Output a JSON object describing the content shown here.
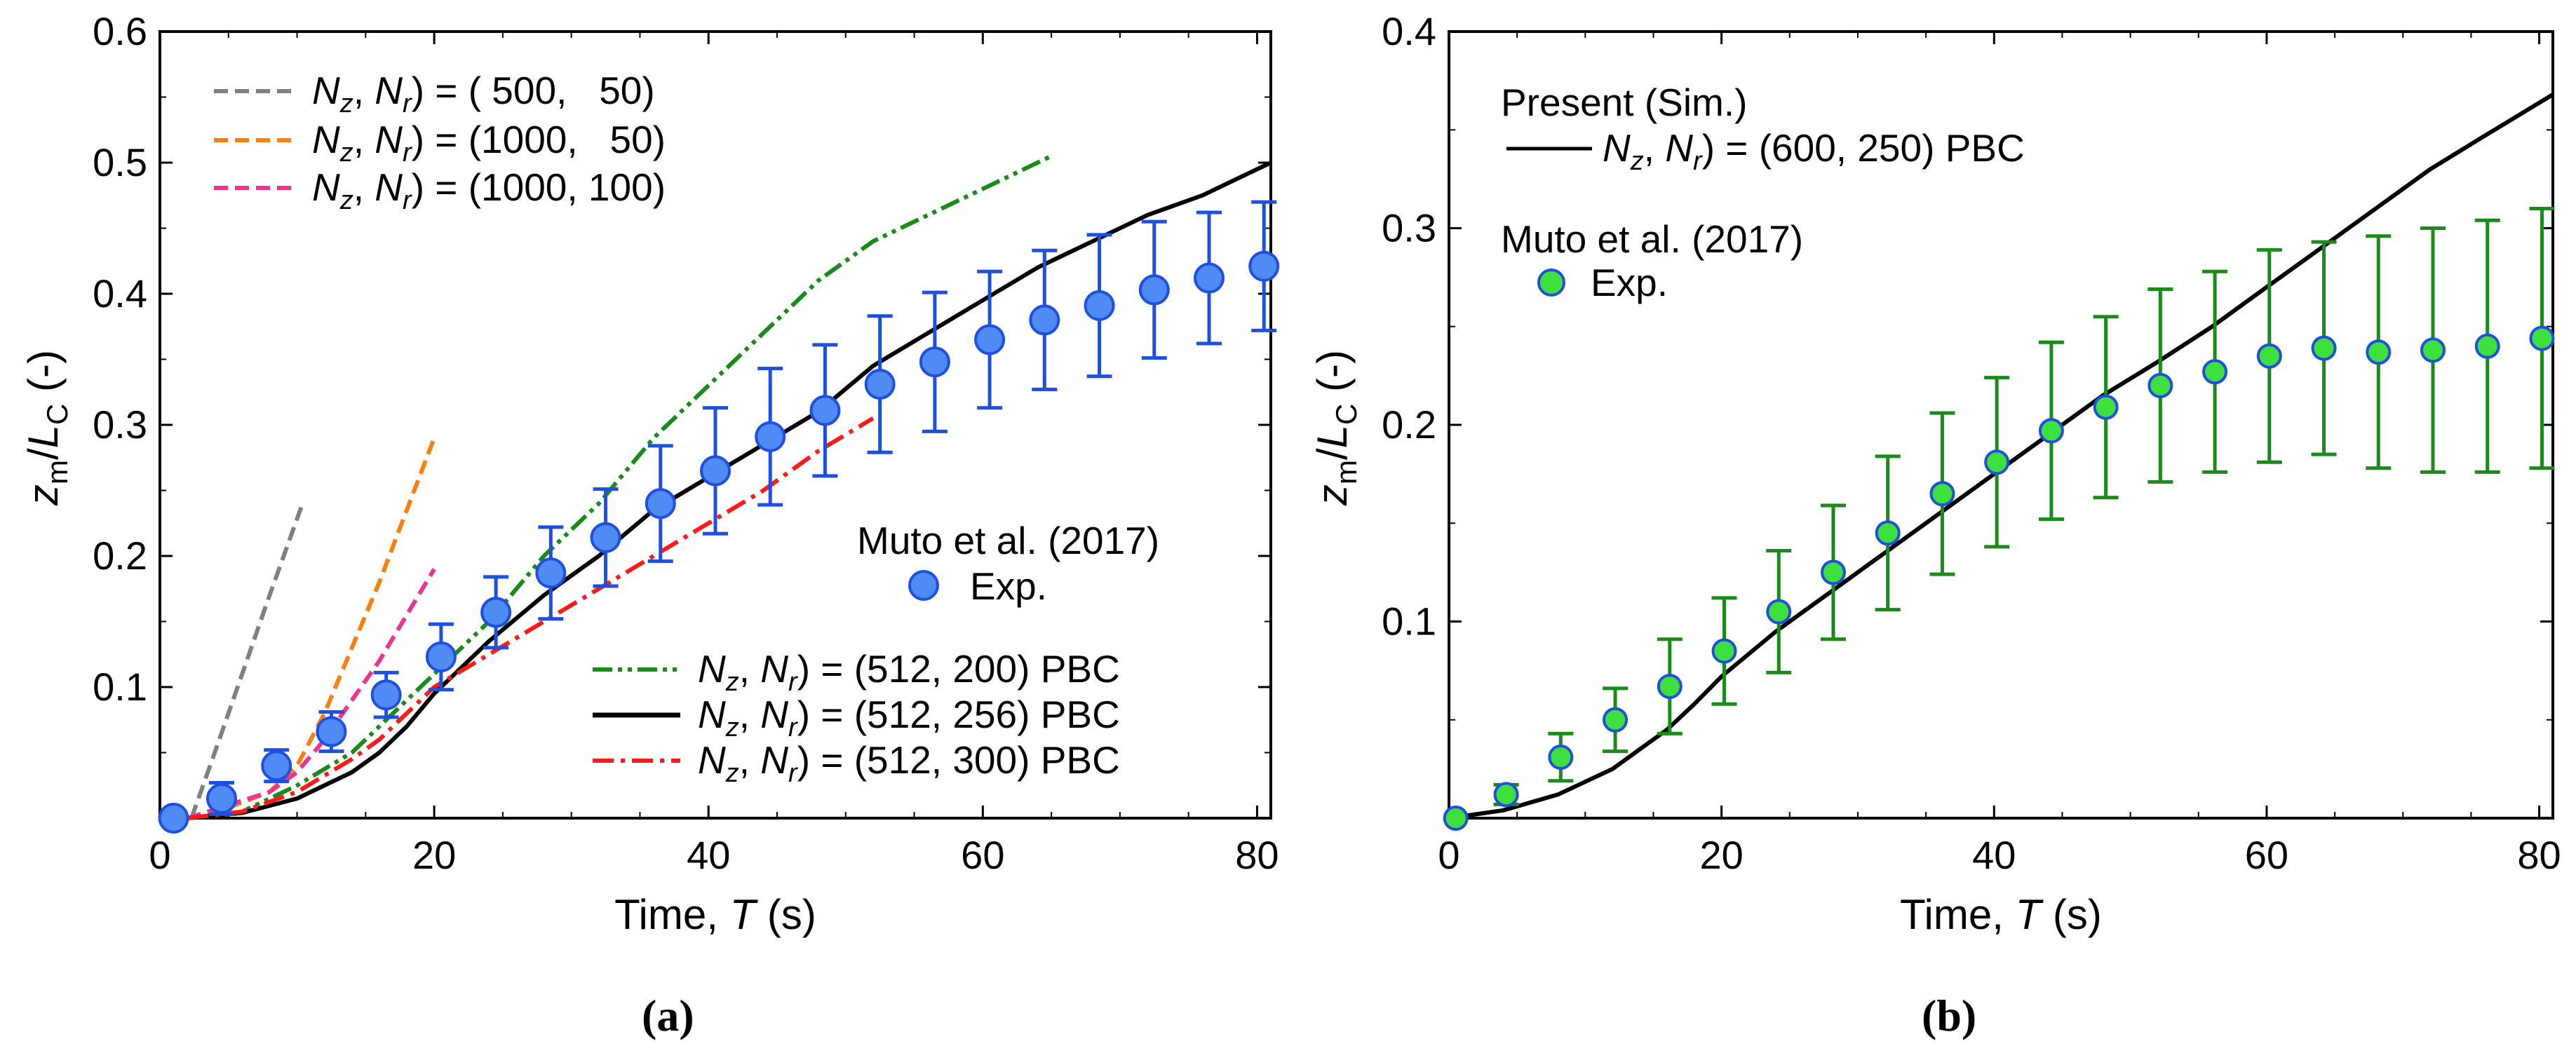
{
  "chart_data": [
    {
      "type": "line",
      "panel_label": "(a)",
      "xlabel_text": "Time, ",
      "xlabel_var": "T",
      "xlabel_unit": " (s)",
      "ylabel": "z_m/L_C (-)",
      "ylabel_parts": {
        "z": "z",
        "zsub": "m",
        "slash": "/",
        "L": "L",
        "Lsub": "C",
        "unit": " (-)"
      },
      "xlim": [
        0,
        81
      ],
      "ylim": [
        0,
        0.6
      ],
      "xticks": [
        0,
        20,
        40,
        60,
        80
      ],
      "yticks": [
        0.1,
        0.2,
        0.3,
        0.4,
        0.5,
        0.6
      ],
      "xtick_labels": [
        "0",
        "20",
        "40",
        "60",
        "80"
      ],
      "ytick_labels": [
        "0.1",
        "0.2",
        "0.3",
        "0.4",
        "0.5",
        "0.6"
      ],
      "grid": false,
      "series": [
        {
          "name": "(Nz, Nr) = ( 500, 50)",
          "label_parts": [
            "( 500,   50)"
          ],
          "color": "#808080",
          "dash": "dashed",
          "legend": "top-left",
          "x": [
            2.3,
            4,
            6,
            8,
            10.4
          ],
          "y": [
            0,
            0.05,
            0.11,
            0.17,
            0.24
          ]
        },
        {
          "name": "(Nz, Nr) = (1000, 50)",
          "label_parts": [
            "(1000,   50)"
          ],
          "color": "#ff7f0e",
          "dash": "dashed",
          "legend": "top-left",
          "x": [
            2,
            5,
            8,
            10,
            12,
            14,
            16,
            18,
            20
          ],
          "y": [
            0,
            0.008,
            0.02,
            0.04,
            0.08,
            0.13,
            0.18,
            0.235,
            0.29
          ]
        },
        {
          "name": "(Nz, Nr) = (1000, 100)",
          "label_parts": [
            "(1000, 100)"
          ],
          "color": "#f0338c",
          "dash": "dashed",
          "legend": "top-left",
          "x": [
            2,
            5,
            8,
            10,
            12,
            14,
            16,
            18,
            20
          ],
          "y": [
            0,
            0.01,
            0.02,
            0.035,
            0.06,
            0.09,
            0.12,
            0.155,
            0.19
          ]
        },
        {
          "name": "(Nz, Nr) = (512, 200) PBC",
          "label_parts": [
            "(512, 200) PBC"
          ],
          "color": "#1a8a1a",
          "dash": "dashdotdot",
          "legend": "bottom-right",
          "x": [
            2,
            6,
            10,
            14,
            16,
            18,
            20,
            24,
            28,
            32,
            36,
            40,
            44,
            48,
            52,
            56,
            60,
            65
          ],
          "y": [
            0,
            0.005,
            0.025,
            0.05,
            0.07,
            0.09,
            0.11,
            0.15,
            0.2,
            0.24,
            0.29,
            0.33,
            0.37,
            0.41,
            0.44,
            0.46,
            0.48,
            0.505
          ]
        },
        {
          "name": "(Nz, Nr) = (512, 256) PBC",
          "label_parts": [
            "(512, 256) PBC"
          ],
          "color": "#000000",
          "dash": "solid",
          "legend": "bottom-right",
          "x": [
            2,
            6,
            10,
            14,
            16,
            18,
            20,
            24,
            28,
            32,
            36,
            40,
            44,
            48,
            52,
            56,
            60,
            64,
            68,
            72,
            76,
            81
          ],
          "y": [
            0,
            0.004,
            0.015,
            0.035,
            0.05,
            0.07,
            0.095,
            0.135,
            0.17,
            0.2,
            0.235,
            0.26,
            0.285,
            0.31,
            0.345,
            0.37,
            0.395,
            0.42,
            0.44,
            0.46,
            0.475,
            0.5
          ]
        },
        {
          "name": "(Nz, Nr) = (512, 300) PBC",
          "label_parts": [
            "(512, 300) PBC"
          ],
          "color": "#ff1a1a",
          "dash": "dashdot",
          "legend": "bottom-right",
          "x": [
            2,
            6,
            10,
            14,
            16,
            18,
            20,
            24,
            28,
            32,
            36,
            40,
            44,
            48,
            52
          ],
          "y": [
            0,
            0.005,
            0.02,
            0.045,
            0.06,
            0.08,
            0.1,
            0.125,
            0.15,
            0.175,
            0.2,
            0.225,
            0.25,
            0.28,
            0.305
          ]
        },
        {
          "name": "Exp.",
          "color": "#1d4fe0",
          "marker_fill": "#4f8af5",
          "type": "scatter-errorbar",
          "x": [
            1,
            4.5,
            8.5,
            12.5,
            16.5,
            20.5,
            24.5,
            28.5,
            32.5,
            36.5,
            40.5,
            44.5,
            48.5,
            52.5,
            56.5,
            60.5,
            64.5,
            68.5,
            72.5,
            76.5,
            80.5
          ],
          "y": [
            0,
            0.015,
            0.04,
            0.066,
            0.094,
            0.123,
            0.157,
            0.187,
            0.214,
            0.24,
            0.265,
            0.291,
            0.311,
            0.331,
            0.348,
            0.365,
            0.38,
            0.391,
            0.403,
            0.412,
            0.421
          ],
          "err": [
            0,
            0.012,
            0.012,
            0.015,
            0.017,
            0.025,
            0.027,
            0.035,
            0.037,
            0.044,
            0.048,
            0.052,
            0.05,
            0.052,
            0.053,
            0.052,
            0.053,
            0.054,
            0.052,
            0.05,
            0.049
          ]
        }
      ],
      "legend_top": {
        "prefix_N": "N",
        "sub_z": "z",
        "sub_r": "r",
        "eq": " = "
      },
      "exp_legend": {
        "title": "Muto et al. (2017)",
        "label": "Exp."
      }
    },
    {
      "type": "line",
      "panel_label": "(b)",
      "xlabel_text": "Time, ",
      "xlabel_var": "T",
      "xlabel_unit": " (s)",
      "ylabel": "z_m/L_C (-)",
      "ylabel_parts": {
        "z": "z",
        "zsub": "m",
        "slash": "/",
        "L": "L",
        "Lsub": "C",
        "unit": " (-)"
      },
      "xlim": [
        0,
        81
      ],
      "ylim": [
        0,
        0.4
      ],
      "xticks": [
        0,
        20,
        40,
        60,
        80
      ],
      "yticks": [
        0.1,
        0.2,
        0.3,
        0.4
      ],
      "xtick_labels": [
        "0",
        "20",
        "40",
        "60",
        "80"
      ],
      "ytick_labels": [
        "0.1",
        "0.2",
        "0.3",
        "0.4"
      ],
      "grid": false,
      "series": [
        {
          "name": "(Nz, Nr) = (600, 250) PBC",
          "label_parts": [
            "(600, 250) PBC"
          ],
          "color": "#000000",
          "dash": "solid",
          "x": [
            0,
            4,
            8,
            12,
            14,
            16,
            18,
            20,
            24,
            28,
            32,
            36,
            40,
            44,
            48,
            52,
            56,
            60,
            64,
            68,
            72,
            76,
            81
          ],
          "y": [
            0,
            0.004,
            0.012,
            0.025,
            0.035,
            0.045,
            0.058,
            0.072,
            0.095,
            0.115,
            0.135,
            0.155,
            0.175,
            0.195,
            0.215,
            0.232,
            0.25,
            0.27,
            0.29,
            0.31,
            0.33,
            0.347,
            0.368
          ]
        },
        {
          "name": "Exp.",
          "color": "#1d4fe0",
          "marker_fill": "#3de03d",
          "errcolor": "#1a8a1a",
          "type": "scatter-errorbar",
          "x": [
            0.5,
            4.2,
            8.2,
            12.2,
            16.2,
            20.2,
            24.2,
            28.2,
            32.2,
            36.2,
            40.2,
            44.2,
            48.2,
            52.2,
            56.2,
            60.2,
            64.2,
            68.2,
            72.2,
            76.2,
            80.2
          ],
          "y": [
            0,
            0.012,
            0.031,
            0.05,
            0.067,
            0.085,
            0.105,
            0.125,
            0.145,
            0.165,
            0.181,
            0.197,
            0.209,
            0.22,
            0.227,
            0.235,
            0.239,
            0.237,
            0.238,
            0.24,
            0.244
          ],
          "err": [
            0,
            0.005,
            0.012,
            0.016,
            0.024,
            0.027,
            0.031,
            0.034,
            0.039,
            0.041,
            0.043,
            0.045,
            0.046,
            0.049,
            0.051,
            0.054,
            0.054,
            0.059,
            0.062,
            0.064,
            0.066
          ]
        }
      ],
      "sim_legend": {
        "title": "Present (Sim.)",
        "prefix_N": "N",
        "sub_z": "z",
        "sub_r": "r",
        "eq": " = "
      },
      "exp_legend": {
        "title": "Muto et al. (2017)",
        "label": "Exp."
      }
    }
  ],
  "origin_label": "0"
}
